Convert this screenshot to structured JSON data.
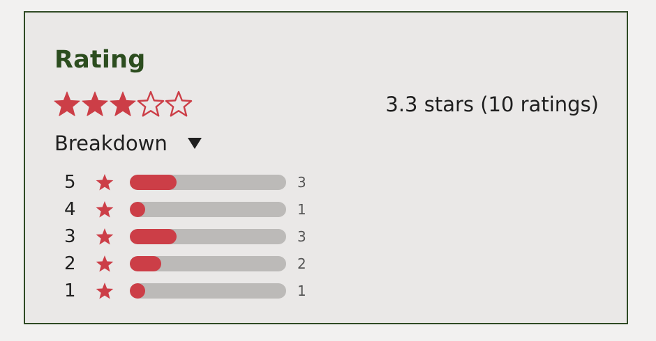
{
  "rating": {
    "title": "Rating",
    "average": 3.3,
    "max_stars": 5,
    "summary_text": "3.3 stars (10 ratings)",
    "star_color": "#cc3e47"
  },
  "breakdown": {
    "toggle_label": "Breakdown",
    "toggle_icon": "triangle-down-icon",
    "rows": [
      {
        "stars": "5",
        "count": "3",
        "fraction": 0.3
      },
      {
        "stars": "4",
        "count": "1",
        "fraction": 0.1
      },
      {
        "stars": "3",
        "count": "3",
        "fraction": 0.3
      },
      {
        "stars": "2",
        "count": "2",
        "fraction": 0.2
      },
      {
        "stars": "1",
        "count": "1",
        "fraction": 0.1
      }
    ]
  },
  "colors": {
    "title": "#2c4d1f",
    "border": "#2f4a24",
    "bar_fill": "#cc3e47",
    "bar_track": "#bcbab8"
  }
}
